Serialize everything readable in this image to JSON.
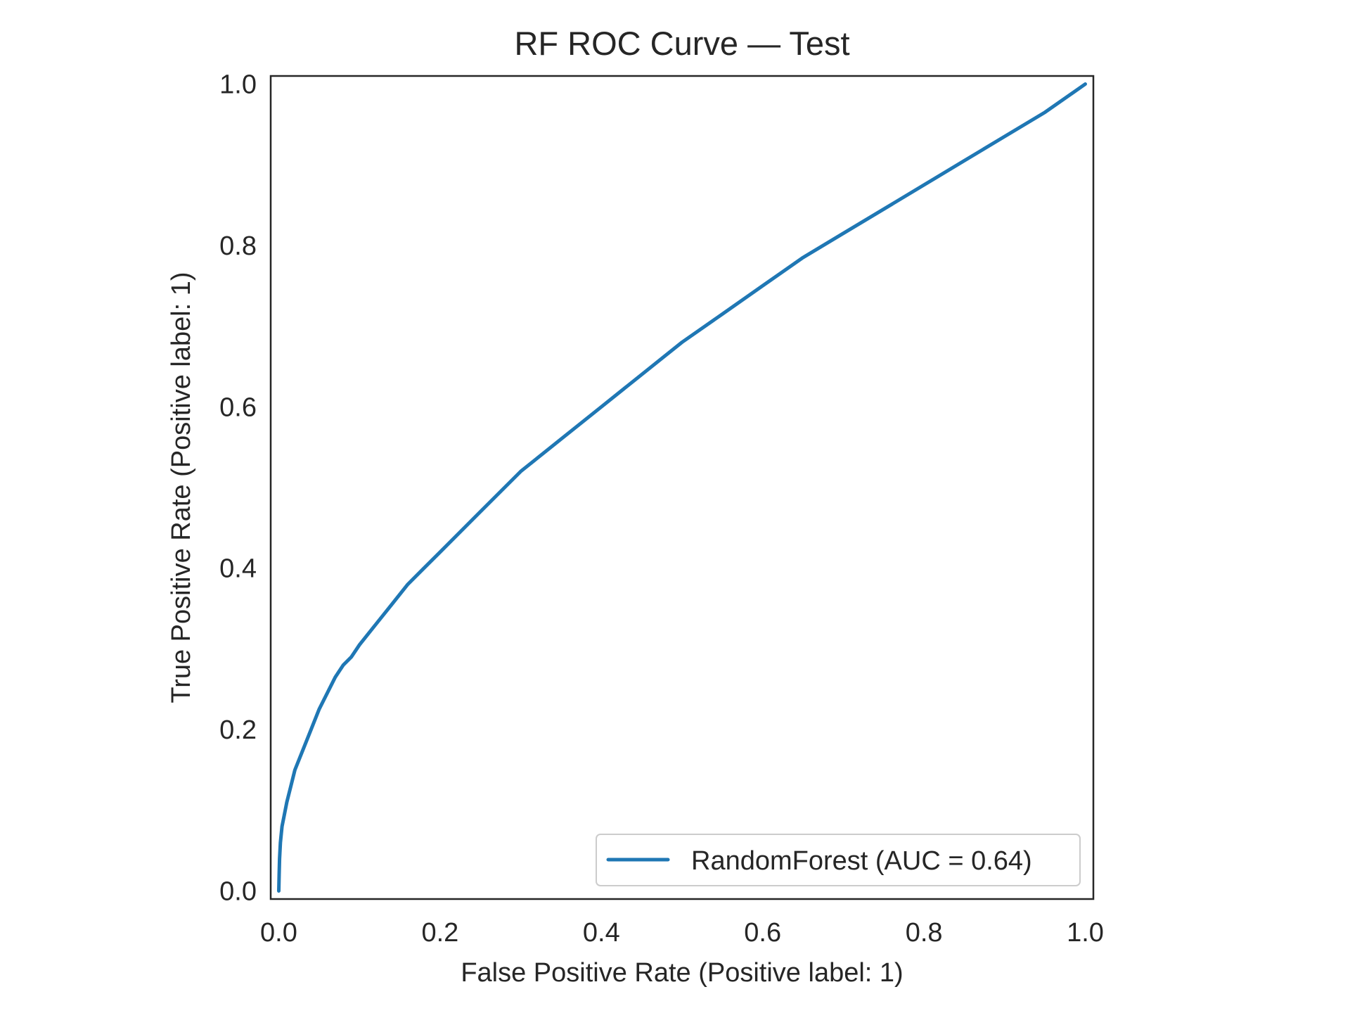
{
  "chart_data": {
    "type": "line",
    "title": "RF ROC Curve — Test",
    "xlabel": "False Positive Rate (Positive label: 1)",
    "ylabel": "True Positive Rate (Positive label: 1)",
    "xlim": [
      -0.01,
      1.01
    ],
    "ylim": [
      -0.01,
      1.01
    ],
    "xticks": [
      0.0,
      0.2,
      0.4,
      0.6,
      0.8,
      1.0
    ],
    "yticks": [
      0.0,
      0.2,
      0.4,
      0.6,
      0.8,
      1.0
    ],
    "xtick_labels": [
      "0.0",
      "0.2",
      "0.4",
      "0.6",
      "0.8",
      "1.0"
    ],
    "ytick_labels": [
      "0.0",
      "0.2",
      "0.4",
      "0.6",
      "0.8",
      "1.0"
    ],
    "grid": false,
    "legend_position": "lower-right",
    "series": [
      {
        "name": "RandomForest (AUC = 0.64)",
        "color": "#1f77b4",
        "x": [
          0.0,
          0.0005,
          0.001,
          0.002,
          0.004,
          0.006,
          0.01,
          0.015,
          0.02,
          0.03,
          0.04,
          0.05,
          0.06,
          0.07,
          0.08,
          0.09,
          0.1,
          0.12,
          0.14,
          0.16,
          0.18,
          0.2,
          0.25,
          0.3,
          0.35,
          0.4,
          0.45,
          0.5,
          0.55,
          0.6,
          0.65,
          0.7,
          0.75,
          0.8,
          0.85,
          0.9,
          0.95,
          1.0
        ],
        "y": [
          0.0,
          0.02,
          0.04,
          0.06,
          0.08,
          0.09,
          0.11,
          0.13,
          0.15,
          0.175,
          0.2,
          0.225,
          0.245,
          0.265,
          0.28,
          0.29,
          0.305,
          0.33,
          0.355,
          0.38,
          0.4,
          0.42,
          0.47,
          0.52,
          0.56,
          0.6,
          0.64,
          0.68,
          0.715,
          0.75,
          0.785,
          0.815,
          0.845,
          0.875,
          0.905,
          0.935,
          0.965,
          1.0
        ]
      }
    ]
  }
}
